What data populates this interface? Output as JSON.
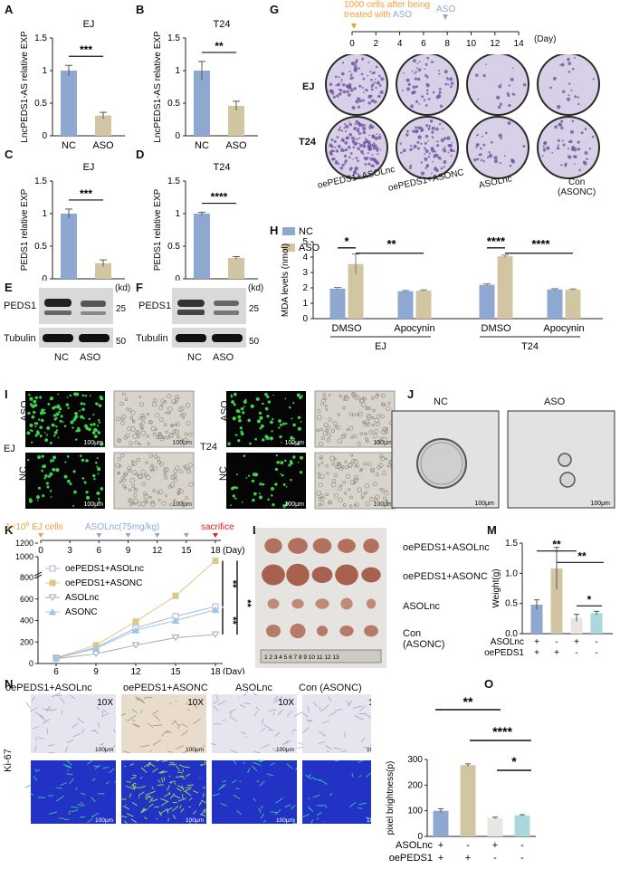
{
  "colors": {
    "nc": "#8fa8d2",
    "aso": "#d2c6a2",
    "teal": "#a9d8dd",
    "orange": "#f0a03c",
    "blue_arrow": "#8fa8d2",
    "red": "#e02020",
    "nc_line": "#a8b4d8",
    "aso_line": "#dcc98a",
    "asolnc_line": "#a8a8a8",
    "asonc_line": "#9cc8e6"
  },
  "panels": {
    "A": "A",
    "B": "B",
    "C": "C",
    "D": "D",
    "E": "E",
    "F": "F",
    "G": "G",
    "H": "H",
    "I": "I",
    "J": "J",
    "K": "K",
    "L": "L",
    "M": "M",
    "N": "N",
    "O": "O"
  },
  "barA": {
    "title": "EJ",
    "ylabel": "LncPEDS1-AS relative EXP",
    "sig": "***",
    "categories": [
      "NC",
      "ASO"
    ],
    "values": [
      1.0,
      0.31
    ],
    "errors": [
      0.08,
      0.05
    ],
    "ylim": [
      0,
      1.5
    ],
    "ticks": [
      "0",
      "0.5",
      "1",
      "1.5"
    ]
  },
  "barB": {
    "title": "T24",
    "ylabel": "LncPEDS1-AS relative EXP",
    "sig": "**",
    "categories": [
      "NC",
      "ASO"
    ],
    "values": [
      1.0,
      0.46
    ],
    "errors": [
      0.14,
      0.07
    ],
    "ylim": [
      0,
      1.5
    ],
    "ticks": [
      "0",
      "0.5",
      "1",
      "1.5"
    ]
  },
  "barC": {
    "title": "EJ",
    "ylabel": "PEDS1 relative EXP",
    "sig": "***",
    "categories": [
      "NC",
      "ASO"
    ],
    "values": [
      1.0,
      0.24
    ],
    "errors": [
      0.07,
      0.05
    ],
    "ylim": [
      0,
      1.5
    ],
    "ticks": [
      "0",
      "0.5",
      "1",
      "1.5"
    ]
  },
  "barD": {
    "title": "T24",
    "ylabel": "PEDS1 relative EXP",
    "sig": "****",
    "categories": [
      "NC",
      "ASO"
    ],
    "values": [
      1.0,
      0.32
    ],
    "errors": [
      0.02,
      0.02
    ],
    "ylim": [
      0,
      1.5
    ],
    "ticks": [
      "0",
      "0.5",
      "1",
      "1.5"
    ]
  },
  "blotE": {
    "row1": "PEDS1",
    "row2": "Tubulin",
    "kd": "(kd)",
    "m25": "25",
    "m50": "50",
    "lanes": [
      "NC",
      "ASO"
    ]
  },
  "blotF": {
    "row1": "PEDS1",
    "row2": "Tubulin",
    "kd": "(kd)",
    "m25": "25",
    "m50": "50",
    "lanes": [
      "NC",
      "ASO"
    ]
  },
  "timelineG": {
    "note1": "1000 cells after being",
    "note2": "treated with ",
    "note_aso": "ASO",
    "aso_label": "ASO",
    "ticks": [
      "0",
      "2",
      "4",
      "6",
      "8",
      "10",
      "12",
      "14"
    ],
    "unit": "(Day)",
    "rows": [
      "EJ",
      "T24"
    ],
    "cols": [
      "oePEDS1+ASOLnc",
      "oePEDS1+ASONC",
      "ASOLnc",
      "Con\n(ASONC)"
    ],
    "col_con1": "Con",
    "col_con2": "(ASONC)"
  },
  "chartH": {
    "legend": [
      "NC",
      "ASO"
    ],
    "ylabel": "MDA levels (nmol)",
    "ticks": [
      "0",
      "1",
      "2",
      "3",
      "4",
      "5"
    ],
    "groups": [
      "DMSO",
      "Apocynin",
      "DMSO",
      "Apocynin"
    ],
    "cells": [
      "EJ",
      "T24"
    ],
    "nc": [
      1.95,
      1.78,
      2.2,
      1.9
    ],
    "aso": [
      3.55,
      1.82,
      4.05,
      1.88
    ],
    "nc_err": [
      0.08,
      0.05,
      0.06,
      0.05
    ],
    "aso_err": [
      0.65,
      0.05,
      0.08,
      0.05
    ],
    "sig1": "*",
    "sig2": "**",
    "sig3": "****",
    "sig4": "****"
  },
  "panelI": {
    "ej": "EJ",
    "t24": "T24",
    "aso": "ASO",
    "nc": "NC",
    "scale": "100μm"
  },
  "panelJ": {
    "nc": "NC",
    "aso": "ASO",
    "scale": "100μm"
  },
  "chartK": {
    "inj": "1×10",
    "inj_sup": "6",
    "inj2": " EJ cells",
    "asolnc": "ASOLnc(75mg/kg)",
    "sacrifice": "sacrifice",
    "top_ticks": [
      "0",
      "3",
      "6",
      "9",
      "12",
      "15",
      "18"
    ],
    "unit": "(Day)",
    "x_ticks": [
      "6",
      "9",
      "12",
      "15",
      "18"
    ],
    "y_ticks": [
      "0",
      "200",
      "400",
      "600",
      "800",
      "1000",
      "1200"
    ],
    "legend": [
      "oePEDS1+ASOLnc",
      "oePEDS1+ASONC",
      "ASOLnc",
      "ASONC"
    ],
    "sig": [
      "**",
      "**",
      "**"
    ],
    "series": [
      {
        "name": "oePEDS1+ASOLnc",
        "values": [
          50,
          150,
          330,
          440,
          530
        ]
      },
      {
        "name": "oePEDS1+ASONC",
        "values": [
          55,
          170,
          390,
          630,
          940
        ]
      },
      {
        "name": "ASOLnc",
        "values": [
          45,
          90,
          170,
          240,
          270
        ]
      },
      {
        "name": "ASONC",
        "values": [
          48,
          140,
          310,
          400,
          500
        ]
      }
    ]
  },
  "panelL": {
    "rows": [
      "oePEDS1+ASOLnc",
      "oePEDS1+ASONC",
      "ASOLnc",
      "Con",
      "(ASONC)"
    ],
    "ruler": "1 2 3 4 5 6 7 8 9 10 11 12 13"
  },
  "chartM": {
    "ylabel": "Weight(g)",
    "ticks": [
      "0.0",
      "0.5",
      "1.0",
      "1.5"
    ],
    "values": [
      0.48,
      1.08,
      0.26,
      0.34
    ],
    "errors": [
      0.08,
      0.35,
      0.06,
      0.03
    ],
    "sig": [
      "**",
      "**",
      "*"
    ],
    "row1": "ASOLnc",
    "row2": "oePEDS1",
    "signs1": [
      "+",
      "-",
      "+",
      "-"
    ],
    "signs2": [
      "+",
      "+",
      "-",
      "-"
    ]
  },
  "panelN": {
    "cols": [
      "oePEDS1+ASOLnc",
      "oePEDS1+ASONC",
      "ASOLnc",
      "Con (ASONC)"
    ],
    "mag": "10X",
    "row": "Ki-67",
    "scale": "100μm"
  },
  "chartO": {
    "ylabel": "pixel brightness(p)",
    "ticks": [
      "0",
      "100",
      "200",
      "300"
    ],
    "values": [
      100,
      278,
      72,
      82
    ],
    "errors": [
      8,
      5,
      3,
      3
    ],
    "sig": [
      "**",
      "****",
      "*"
    ],
    "row1": "ASOLnc",
    "row2": "oePEDS1",
    "signs1": [
      "+",
      "-",
      "+",
      "-"
    ],
    "signs2": [
      "+",
      "+",
      "-",
      "-"
    ]
  }
}
